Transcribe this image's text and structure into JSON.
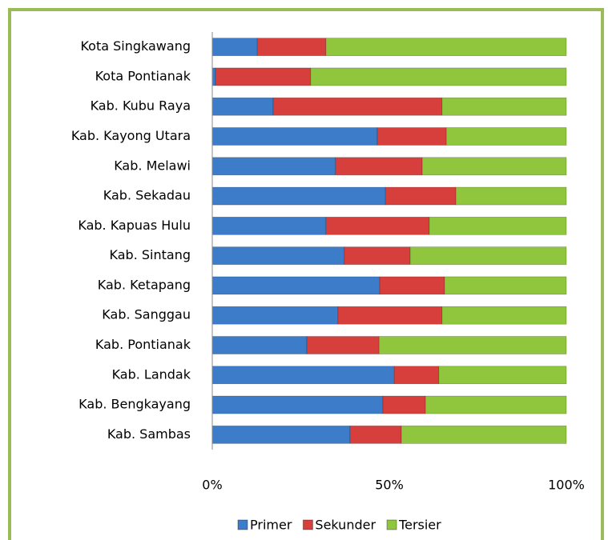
{
  "chart_data": {
    "type": "stacked_bar_horizontal",
    "categories": [
      "Kota Singkawang",
      "Kota Pontianak",
      "Kab. Kubu Raya",
      "Kab. Kayong Utara",
      "Kab. Melawi",
      "Kab. Sekadau",
      "Kab. Kapuas Hulu",
      "Kab. Sintang",
      "Kab. Ketapang",
      "Kab. Sanggau",
      "Kab. Pontianak",
      "Kab. Landak",
      "Kab. Bengkayang",
      "Kab. Sambas"
    ],
    "series": [
      {
        "name": "Primer",
        "color": "#3d7cc9",
        "values": [
          12.7,
          0.9,
          17.2,
          46.6,
          34.8,
          48.9,
          32.1,
          37.3,
          47.3,
          35.5,
          26.7,
          51.4,
          48.2,
          38.9
        ]
      },
      {
        "name": "Sekunder",
        "color": "#d63f3c",
        "values": [
          19.4,
          26.9,
          47.7,
          19.5,
          24.5,
          19.9,
          29.2,
          18.6,
          18.3,
          29.4,
          20.4,
          12.6,
          12.0,
          14.5
        ]
      },
      {
        "name": "Tersier",
        "color": "#8fc63e",
        "values": [
          67.9,
          72.2,
          35.1,
          33.9,
          40.7,
          31.2,
          38.7,
          44.1,
          34.4,
          35.1,
          52.9,
          36.0,
          39.8,
          46.6
        ]
      }
    ],
    "xlim": [
      0,
      100
    ],
    "xticks": [
      {
        "value": 0,
        "label": "0%"
      },
      {
        "value": 50,
        "label": "50%"
      },
      {
        "value": 100,
        "label": "100%"
      }
    ],
    "legend": "bottom"
  }
}
